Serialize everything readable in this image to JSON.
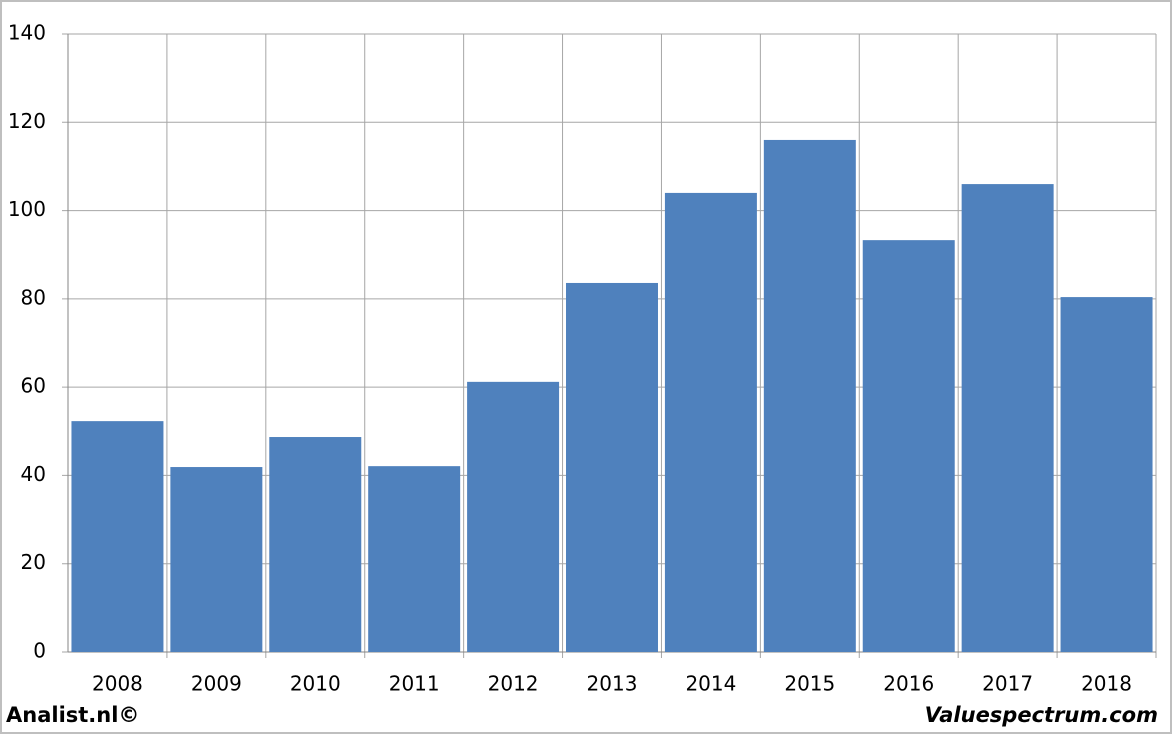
{
  "chart_data": {
    "type": "bar",
    "categories": [
      "2008",
      "2009",
      "2010",
      "2011",
      "2012",
      "2013",
      "2014",
      "2015",
      "2016",
      "2017",
      "2018"
    ],
    "values": [
      52.3,
      41.9,
      48.7,
      42.1,
      61.2,
      83.6,
      104.0,
      116.0,
      93.3,
      106.0,
      80.4
    ],
    "color": "#4f81bd",
    "ylim": [
      0,
      140
    ],
    "yticks": [
      0,
      20,
      40,
      60,
      80,
      100,
      120,
      140
    ],
    "grid": true
  },
  "footer": {
    "left": "Analist.nl©",
    "right": "Valuespectrum.com"
  }
}
